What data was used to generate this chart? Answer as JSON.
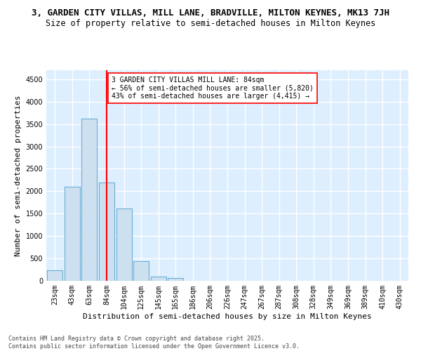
{
  "title_line1": "3, GARDEN CITY VILLAS, MILL LANE, BRADVILLE, MILTON KEYNES, MK13 7JH",
  "title_line2": "Size of property relative to semi-detached houses in Milton Keynes",
  "xlabel": "Distribution of semi-detached houses by size in Milton Keynes",
  "ylabel": "Number of semi-detached properties",
  "categories": [
    "23sqm",
    "43sqm",
    "63sqm",
    "84sqm",
    "104sqm",
    "125sqm",
    "145sqm",
    "165sqm",
    "186sqm",
    "206sqm",
    "226sqm",
    "247sqm",
    "267sqm",
    "287sqm",
    "308sqm",
    "328sqm",
    "349sqm",
    "369sqm",
    "389sqm",
    "410sqm",
    "430sqm"
  ],
  "values": [
    230,
    2100,
    3620,
    2200,
    1620,
    440,
    100,
    60,
    0,
    0,
    0,
    0,
    0,
    0,
    0,
    0,
    0,
    0,
    0,
    0,
    0
  ],
  "bar_color": "#cce0f0",
  "bar_edge_color": "#6baed6",
  "vline_x": 3,
  "vline_color": "red",
  "annotation_text": "3 GARDEN CITY VILLAS MILL LANE: 84sqm\n← 56% of semi-detached houses are smaller (5,820)\n43% of semi-detached houses are larger (4,415) →",
  "annotation_box_color": "white",
  "annotation_box_edge": "red",
  "ylim": [
    0,
    4700
  ],
  "yticks": [
    0,
    500,
    1000,
    1500,
    2000,
    2500,
    3000,
    3500,
    4000,
    4500
  ],
  "background_color": "#ddeeff",
  "grid_color": "white",
  "footer": "Contains HM Land Registry data © Crown copyright and database right 2025.\nContains public sector information licensed under the Open Government Licence v3.0.",
  "title_fontsize": 9,
  "subtitle_fontsize": 8.5,
  "axis_label_fontsize": 8,
  "tick_fontsize": 7,
  "annotation_fontsize": 7,
  "footer_fontsize": 6
}
